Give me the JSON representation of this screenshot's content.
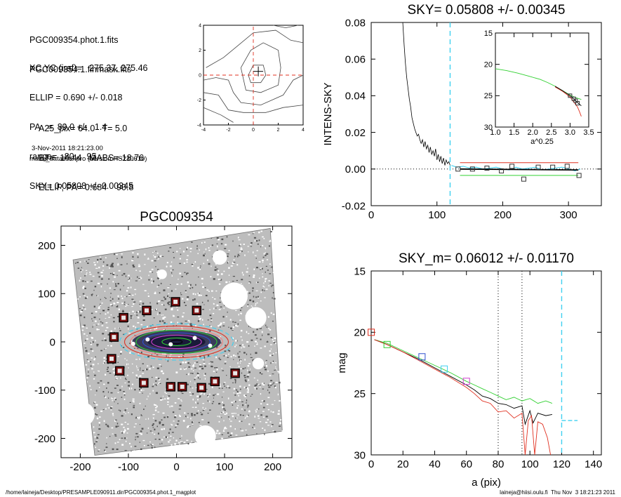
{
  "header": {
    "lines_top": [
      "PGC009354.phot.1.fits",
      "PGC009354.1.finmask.fits"
    ],
    "lines_fit": [
      "XC,YC (iraf)=   275.37, 275.46",
      "ELLIP = 0.690 +/- 0.018",
      "PA   =  89.0 +/-   1.4",
      "range=   80.-   95.",
      "SKY= 0.05808 +/- 0.00345"
    ],
    "lines_params": [
      "A25_pix= 64.0   T= 5.0",
      "BT=  14.44   MABS=-18.76",
      "ELLIP, PA= 0.684    90.8"
    ],
    "timestamp": "3-Nov-2011 18:21:23.00",
    "program": "make_datalist0.pro (version HS230610)"
  },
  "footer": {
    "path": "/home/laineja/Desktop/PRESAMPLE090911.dir/PGC009354.phot.1_magplot",
    "user_stamp": "laineja@hiisi.oulu.fi  Thu Nov  3 18:21:23 2011"
  },
  "colors": {
    "cyan": "#3fd0f0",
    "red": "#e03020",
    "green": "#30d030",
    "blue": "#3050d0",
    "magenta": "#d040d0",
    "pink": "#f08080",
    "gray": "#8a8a8a"
  },
  "chart_data": [
    {
      "id": "contour",
      "type": "contour",
      "title": "",
      "xlim": [
        -4,
        4
      ],
      "ylim": [
        -4,
        4
      ],
      "xticks": [
        -4,
        -2,
        0,
        2,
        4
      ],
      "yticks": [
        -4,
        -2,
        0,
        2,
        4
      ],
      "center": [
        0.4,
        0.3
      ],
      "crosshair": [
        0,
        0
      ],
      "contours": [
        [
          [
            -0.4,
            0.0
          ],
          [
            0.0,
            0.8
          ],
          [
            0.8,
            0.8
          ],
          [
            1.0,
            0.0
          ],
          [
            0.6,
            -0.6
          ],
          [
            -0.2,
            -0.6
          ],
          [
            -0.4,
            0.0
          ]
        ],
        [
          [
            -1.0,
            0.6
          ],
          [
            -0.2,
            2.0
          ],
          [
            0.8,
            2.6
          ],
          [
            2.0,
            2.0
          ],
          [
            2.2,
            0.6
          ],
          [
            2.0,
            -0.8
          ],
          [
            0.6,
            -1.4
          ],
          [
            -0.6,
            -1.2
          ],
          [
            -1.0,
            0.6
          ]
        ],
        [
          [
            -3.8,
            0.6
          ],
          [
            -2.4,
            1.4
          ],
          [
            -1.2,
            2.4
          ],
          [
            0.0,
            3.4
          ],
          [
            1.8,
            3.6
          ],
          [
            3.0,
            2.8
          ],
          [
            4.0,
            2.6
          ]
        ],
        [
          [
            -4.0,
            -0.4
          ],
          [
            -3.0,
            -0.2
          ],
          [
            -2.0,
            -0.4
          ],
          [
            -1.6,
            -1.4
          ],
          [
            -1.0,
            -2.2
          ],
          [
            0.6,
            -2.4
          ],
          [
            2.4,
            -1.6
          ],
          [
            3.2,
            -0.4
          ],
          [
            4.0,
            0.0
          ]
        ],
        [
          [
            -4.0,
            -1.4
          ],
          [
            -2.8,
            -1.6
          ],
          [
            -2.0,
            -2.8
          ],
          [
            -0.8,
            -3.0
          ],
          [
            1.0,
            -3.0
          ],
          [
            2.4,
            -2.6
          ],
          [
            4.0,
            -2.4
          ]
        ],
        [
          [
            -4.0,
            -2.6
          ],
          [
            -2.6,
            -3.2
          ],
          [
            -1.6,
            -3.8
          ]
        ],
        [
          [
            1.6,
            4.0
          ],
          [
            2.6,
            3.8
          ],
          [
            3.6,
            4.0
          ]
        ]
      ]
    },
    {
      "id": "sky",
      "type": "line",
      "title": "SKY= 0.05808 +/- 0.00345",
      "xlabel": "",
      "ylabel": "INTENS-SKY",
      "xlim": [
        0,
        350
      ],
      "ylim": [
        -0.02,
        0.08
      ],
      "xticks": [
        0,
        100,
        200,
        300
      ],
      "yticks": [
        "0.08",
        "0.06",
        "0.04",
        "0.02",
        "0.00",
        "-0.02"
      ],
      "ytick_values": [
        0.08,
        0.06,
        0.04,
        0.02,
        0.0,
        -0.02
      ],
      "profile": {
        "x": [
          48,
          50,
          52,
          54,
          56,
          58,
          60,
          62,
          64,
          66,
          68,
          70,
          72,
          74,
          76,
          78,
          80,
          82,
          84,
          86,
          88,
          90,
          92,
          94,
          96,
          98,
          100,
          102,
          104,
          106,
          108,
          110,
          112,
          114,
          116,
          118,
          120
        ],
        "y": [
          0.08,
          0.068,
          0.058,
          0.05,
          0.044,
          0.038,
          0.034,
          0.028,
          0.025,
          0.022,
          0.02,
          0.018,
          0.019,
          0.016,
          0.014,
          0.016,
          0.012,
          0.015,
          0.011,
          0.013,
          0.009,
          0.012,
          0.008,
          0.01,
          0.007,
          0.011,
          0.005,
          0.008,
          0.004,
          0.007,
          0.003,
          0.006,
          0.002,
          0.005,
          0.003,
          0.004,
          0.002
        ]
      },
      "cyan_profile": {
        "x": [
          122,
          130,
          140,
          150,
          160,
          170,
          180,
          190,
          200,
          210,
          220,
          230,
          240,
          250,
          260,
          270,
          280,
          290,
          300,
          310,
          318
        ],
        "y": [
          0.002,
          0.001,
          0.0015,
          0.0005,
          0.001,
          0.0,
          0.0005,
          0.001,
          0.0,
          -0.0005,
          0.001,
          0.0,
          0.0005,
          0.001,
          -0.0005,
          0.0,
          0.0005,
          0.001,
          0.0,
          -0.001,
          0.0
        ]
      },
      "sky_points": {
        "x": [
          132,
          154,
          176,
          198,
          214,
          232,
          254,
          276,
          298,
          316
        ],
        "y": [
          0.0,
          0.0,
          0.0005,
          -0.001,
          0.0015,
          -0.0055,
          0.001,
          0.001,
          0.0015,
          -0.0035
        ]
      },
      "mean_line": {
        "x": [
          135,
          315
        ],
        "y": [
          0.0,
          -0.0005
        ]
      },
      "red_line": {
        "x": [
          135,
          315
        ],
        "y": [
          0.0035,
          0.0035
        ]
      },
      "green_line": {
        "x": [
          135,
          315
        ],
        "y": [
          -0.0035,
          -0.0035
        ]
      },
      "range_marker_x": 120
    },
    {
      "id": "sky_inset",
      "type": "line",
      "title": "",
      "xlabel": "a^0.25",
      "ylabel": "",
      "xlim": [
        1.0,
        3.5
      ],
      "ylim": [
        15,
        30
      ],
      "y_inverted": true,
      "xticks": [
        "1.0",
        "1.5",
        "2.0",
        "2.5",
        "3.0",
        "3.5"
      ],
      "xtick_values": [
        1.0,
        1.5,
        2.0,
        2.5,
        3.0,
        3.5
      ],
      "yticks": [
        "15",
        "20",
        "25",
        "30"
      ],
      "ytick_values": [
        15,
        20,
        25,
        30
      ],
      "series": [
        {
          "color_key": "green",
          "x": [
            1.0,
            1.3,
            1.6,
            1.9,
            2.2,
            2.4,
            2.6,
            2.8,
            3.0,
            3.15,
            3.3
          ],
          "y": [
            20.7,
            21.0,
            21.4,
            21.9,
            22.4,
            22.9,
            23.5,
            24.2,
            24.9,
            25.3,
            25.6
          ]
        },
        {
          "color_key": "red",
          "x": [
            2.6,
            2.8,
            3.0,
            3.1,
            3.2,
            3.25,
            3.3
          ],
          "y": [
            23.6,
            24.3,
            25.2,
            26.0,
            26.8,
            27.5,
            28.3
          ]
        },
        {
          "color_key": "black",
          "x": [
            2.6,
            2.8,
            3.0,
            3.1,
            3.2,
            3.3
          ],
          "y": [
            23.5,
            24.2,
            25.0,
            25.5,
            26.1,
            26.6
          ]
        }
      ],
      "points": {
        "x": [
          3.0,
          3.1,
          3.15,
          3.2
        ],
        "y": [
          25.0,
          25.5,
          25.8,
          26.2
        ]
      }
    },
    {
      "id": "image",
      "type": "scatter",
      "title": "PGC009354",
      "xlim": [
        -240,
        240
      ],
      "ylim": [
        -240,
        240
      ],
      "xticks": [
        -200,
        -100,
        0,
        100,
        200
      ],
      "yticks": [
        200,
        100,
        0,
        -100,
        -200
      ],
      "frame_corners": [
        [
          -215,
          170
        ],
        [
          195,
          235
        ],
        [
          220,
          -185
        ],
        [
          -170,
          -235
        ]
      ],
      "masks": [
        {
          "x": 120,
          "y": 95,
          "r": 28
        },
        {
          "x": 165,
          "y": 50,
          "r": 22
        },
        {
          "x": -195,
          "y": -150,
          "r": 25
        },
        {
          "x": 60,
          "y": -195,
          "r": 22
        },
        {
          "x": 90,
          "y": 175,
          "r": 15
        },
        {
          "x": 170,
          "y": -45,
          "r": 12
        },
        {
          "x": -30,
          "y": 140,
          "r": 10
        }
      ],
      "ellipses": [
        {
          "a": 118,
          "b": 38,
          "color_key": "cyan"
        },
        {
          "a": 108,
          "b": 33,
          "color_key": "red"
        },
        {
          "a": 96,
          "b": 28,
          "color_key": "pink"
        },
        {
          "a": 84,
          "b": 24,
          "color_key": "green"
        },
        {
          "a": 70,
          "b": 19,
          "color_key": "blue"
        },
        {
          "a": 52,
          "b": 14,
          "color_key": "magenta"
        },
        {
          "a": 30,
          "b": 8,
          "color_key": "green"
        },
        {
          "a": 12,
          "b": 4,
          "color_key": "black"
        }
      ],
      "boxes": [
        {
          "x": -130,
          "y": 10
        },
        {
          "x": -110,
          "y": 50
        },
        {
          "x": -62,
          "y": 65
        },
        {
          "x": -2,
          "y": 83
        },
        {
          "x": 42,
          "y": 65
        },
        {
          "x": -135,
          "y": -35
        },
        {
          "x": -118,
          "y": -60
        },
        {
          "x": -68,
          "y": -85
        },
        {
          "x": -12,
          "y": -93
        },
        {
          "x": 12,
          "y": -93
        },
        {
          "x": 52,
          "y": -95
        },
        {
          "x": 80,
          "y": -82
        },
        {
          "x": 122,
          "y": -65
        }
      ]
    },
    {
      "id": "profile",
      "type": "line",
      "title": "SKY_m=  0.06012 +/- 0.01170",
      "xlabel": "a (pix)",
      "ylabel": "mag",
      "xlim": [
        0,
        145
      ],
      "ylim": [
        15,
        30
      ],
      "y_inverted": true,
      "xticks": [
        0,
        20,
        40,
        60,
        80,
        100,
        120,
        140
      ],
      "yticks": [
        15,
        20,
        25,
        30
      ],
      "vlines_dotted": [
        80,
        95
      ],
      "vline_dashed_cyan": 120,
      "cyan_hline": {
        "x": [
          120,
          130
        ],
        "y": [
          27.2,
          27.2
        ]
      },
      "series": [
        {
          "color_key": "green",
          "x": [
            2,
            10,
            20,
            30,
            40,
            50,
            60,
            65,
            70,
            75,
            80,
            85,
            90,
            95,
            100,
            105,
            110,
            114
          ],
          "y": [
            20.6,
            20.9,
            21.5,
            22.1,
            22.7,
            23.3,
            24.0,
            24.3,
            24.6,
            24.9,
            25.2,
            25.5,
            25.3,
            25.6,
            25.4,
            25.8,
            25.6,
            25.8
          ]
        },
        {
          "color_key": "black",
          "x": [
            2,
            10,
            20,
            30,
            40,
            50,
            60,
            65,
            70,
            75,
            80,
            85,
            90,
            95,
            97,
            100,
            102,
            105,
            110,
            114
          ],
          "y": [
            20.6,
            21.0,
            21.6,
            22.2,
            22.9,
            23.6,
            24.3,
            24.7,
            25.2,
            25.4,
            25.8,
            25.9,
            26.2,
            26.0,
            27.5,
            26.4,
            27.4,
            26.6,
            26.8,
            26.7
          ]
        },
        {
          "color_key": "red",
          "x": [
            2,
            10,
            20,
            30,
            40,
            50,
            60,
            65,
            70,
            75,
            80,
            85,
            90,
            95,
            97,
            99,
            101,
            103,
            105,
            108,
            111,
            113
          ],
          "y": [
            20.6,
            21.0,
            21.6,
            22.3,
            23.0,
            23.7,
            24.5,
            25.0,
            25.6,
            25.8,
            26.5,
            26.4,
            27.0,
            26.6,
            30.0,
            27.2,
            26.8,
            30.0,
            27.3,
            27.5,
            28.6,
            30.0
          ]
        }
      ],
      "markers": [
        {
          "x": 0,
          "y": 20.0,
          "color_key": "red"
        },
        {
          "x": 10,
          "y": 21.0,
          "color_key": "green"
        },
        {
          "x": 32,
          "y": 22.0,
          "color_key": "blue"
        },
        {
          "x": 46,
          "y": 23.0,
          "color_key": "cyan"
        },
        {
          "x": 60,
          "y": 24.0,
          "color_key": "magenta"
        }
      ]
    }
  ]
}
